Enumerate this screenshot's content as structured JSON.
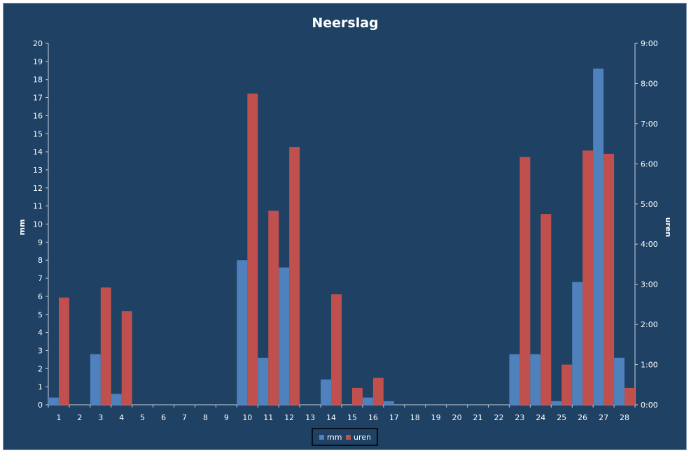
{
  "chart_data": {
    "type": "bar",
    "title": "Neerslag",
    "categories": [
      "1",
      "2",
      "3",
      "4",
      "5",
      "6",
      "7",
      "8",
      "9",
      "10",
      "11",
      "12",
      "13",
      "14",
      "15",
      "16",
      "17",
      "18",
      "19",
      "20",
      "21",
      "22",
      "23",
      "24",
      "25",
      "26",
      "27",
      "28"
    ],
    "series": [
      {
        "name": "mm",
        "axis": "left",
        "color": "#4f81bd",
        "values": [
          0.4,
          0,
          2.8,
          0.6,
          0,
          0,
          0,
          0,
          0,
          8.0,
          2.6,
          7.6,
          0,
          1.4,
          0,
          0.4,
          0.2,
          0,
          0,
          0,
          0,
          0,
          2.8,
          2.8,
          0.2,
          6.8,
          18.6,
          2.6
        ]
      },
      {
        "name": "uren",
        "axis": "right",
        "color": "#c0504d",
        "values_hours": [
          2.67,
          0,
          2.92,
          2.33,
          0,
          0,
          0,
          0,
          0,
          7.75,
          4.83,
          6.42,
          0,
          2.75,
          0.42,
          0.67,
          0,
          0,
          0,
          0,
          0,
          0,
          6.17,
          4.75,
          1.0,
          6.33,
          6.25,
          0.42
        ]
      }
    ],
    "y_left": {
      "label": "mm",
      "min": 0,
      "max": 20,
      "step": 1,
      "ticks": [
        "0",
        "1",
        "2",
        "3",
        "4",
        "5",
        "6",
        "7",
        "8",
        "9",
        "10",
        "11",
        "12",
        "13",
        "14",
        "15",
        "16",
        "17",
        "18",
        "19",
        "20"
      ]
    },
    "y_right": {
      "label": "uren",
      "min": 0,
      "max": 9,
      "step": 1,
      "ticks": [
        "0:00",
        "1:00",
        "2:00",
        "3:00",
        "4:00",
        "5:00",
        "6:00",
        "7:00",
        "8:00",
        "9:00"
      ]
    },
    "grid": false,
    "legend": {
      "position": "bottom",
      "entries": [
        "mm",
        "uren"
      ]
    },
    "colors": {
      "background": "#1f4164",
      "text": "#ffffff",
      "axis": "#c8d0dc"
    }
  }
}
